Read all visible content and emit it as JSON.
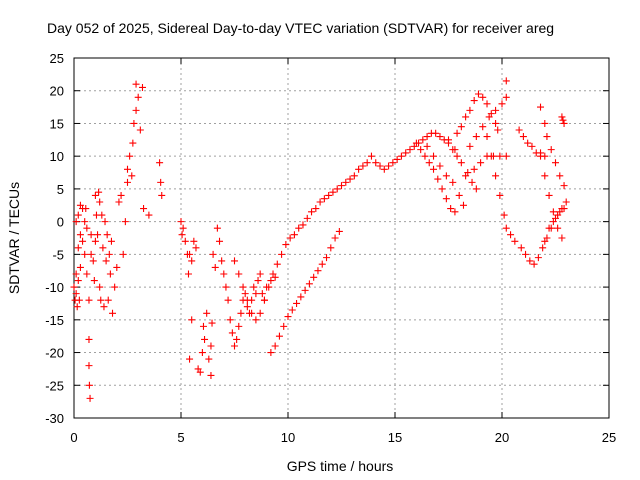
{
  "chart_data": {
    "type": "scatter",
    "title": "Day 052 of 2025, Sidereal Day-to-day VTEC variation (SDTVAR) for receiver areg",
    "xlabel": "GPS time / hours",
    "ylabel": "SDTVAR / TECUs",
    "xlim": [
      0,
      25
    ],
    "ylim": [
      -30,
      25
    ],
    "xticks": [
      0,
      5,
      10,
      15,
      20,
      25
    ],
    "yticks": [
      -30,
      -25,
      -20,
      -15,
      -10,
      -5,
      0,
      5,
      10,
      15,
      20,
      25
    ],
    "grid": true,
    "marker": "+",
    "color": "#ff0000",
    "series": [
      {
        "points": [
          [
            0.0,
            -10
          ],
          [
            0.05,
            -12
          ],
          [
            0.1,
            -8
          ],
          [
            0.1,
            -11
          ],
          [
            0.15,
            -13
          ],
          [
            0.2,
            -9
          ],
          [
            0.2,
            -4
          ],
          [
            0.25,
            -12
          ],
          [
            0.3,
            -7
          ],
          [
            0.3,
            -2
          ],
          [
            0.1,
            0
          ],
          [
            0.2,
            1
          ],
          [
            0.3,
            2.5
          ],
          [
            0.4,
            2
          ],
          [
            0.4,
            -3
          ],
          [
            0.5,
            -5
          ],
          [
            0.5,
            0
          ],
          [
            0.55,
            2
          ],
          [
            0.6,
            -1
          ],
          [
            0.6,
            -8
          ],
          [
            0.7,
            -12
          ],
          [
            0.7,
            -18
          ],
          [
            0.7,
            -22
          ],
          [
            0.72,
            -25
          ],
          [
            0.75,
            -27
          ],
          [
            0.8,
            -5
          ],
          [
            0.8,
            -2
          ],
          [
            0.9,
            -6
          ],
          [
            0.95,
            -9
          ],
          [
            1.0,
            -3
          ],
          [
            1.0,
            4
          ],
          [
            1.05,
            1
          ],
          [
            1.1,
            -2
          ],
          [
            1.15,
            4.5
          ],
          [
            1.2,
            3
          ],
          [
            1.2,
            -10
          ],
          [
            1.25,
            -12
          ],
          [
            1.3,
            1
          ],
          [
            1.35,
            -4
          ],
          [
            1.4,
            -13
          ],
          [
            1.45,
            0
          ],
          [
            1.5,
            -6
          ],
          [
            1.55,
            -2
          ],
          [
            1.6,
            -12
          ],
          [
            1.65,
            -5
          ],
          [
            1.7,
            -8
          ],
          [
            1.75,
            -3
          ],
          [
            1.8,
            -14
          ],
          [
            1.9,
            -10
          ],
          [
            2.0,
            -7
          ],
          [
            2.1,
            3
          ],
          [
            2.2,
            4
          ],
          [
            2.3,
            -5
          ],
          [
            2.4,
            0
          ],
          [
            2.5,
            6
          ],
          [
            2.5,
            8
          ],
          [
            2.6,
            10
          ],
          [
            2.7,
            7
          ],
          [
            2.75,
            12
          ],
          [
            2.8,
            15
          ],
          [
            2.9,
            17
          ],
          [
            2.9,
            21
          ],
          [
            3.0,
            19
          ],
          [
            3.1,
            14
          ],
          [
            3.2,
            20.5
          ],
          [
            3.25,
            2
          ],
          [
            3.5,
            1
          ],
          [
            4.0,
            9
          ],
          [
            4.05,
            6
          ],
          [
            4.1,
            4
          ]
        ]
      },
      {
        "points": [
          [
            5.0,
            0
          ],
          [
            5.05,
            -2
          ],
          [
            5.1,
            -1
          ],
          [
            5.2,
            -3
          ],
          [
            5.3,
            -5
          ],
          [
            5.35,
            -8
          ],
          [
            5.4,
            -5
          ],
          [
            5.5,
            -6
          ],
          [
            5.4,
            -21
          ],
          [
            5.5,
            -15
          ],
          [
            5.6,
            -3
          ],
          [
            5.7,
            -4
          ],
          [
            5.8,
            -22.5
          ],
          [
            5.9,
            -23
          ],
          [
            6.0,
            -20
          ],
          [
            6.05,
            -16
          ],
          [
            6.1,
            -18
          ],
          [
            6.2,
            -14
          ],
          [
            6.3,
            -21
          ],
          [
            6.4,
            -23.5
          ],
          [
            6.4,
            -19
          ],
          [
            6.45,
            -15.5
          ],
          [
            6.5,
            -5
          ],
          [
            6.6,
            -7
          ],
          [
            6.7,
            -1
          ],
          [
            6.8,
            -3
          ],
          [
            6.9,
            -6
          ],
          [
            7.0,
            -8
          ],
          [
            7.1,
            -10
          ],
          [
            7.2,
            -12
          ],
          [
            7.3,
            -15
          ],
          [
            7.4,
            -17
          ],
          [
            7.5,
            -19
          ],
          [
            7.6,
            -18
          ],
          [
            7.7,
            -16
          ],
          [
            7.8,
            -14
          ],
          [
            7.9,
            -12
          ],
          [
            8.0,
            -11
          ],
          [
            8.1,
            -13
          ],
          [
            8.2,
            -14
          ],
          [
            8.3,
            -12
          ],
          [
            8.4,
            -10
          ],
          [
            8.5,
            -11
          ],
          [
            8.6,
            -9
          ],
          [
            8.7,
            -8
          ],
          [
            8.8,
            -11
          ],
          [
            8.9,
            -12
          ],
          [
            9.0,
            -10
          ],
          [
            9.2,
            -9
          ],
          [
            9.4,
            -8.5
          ]
        ]
      },
      {
        "points": [
          [
            7.5,
            -6
          ],
          [
            7.7,
            -8
          ],
          [
            7.9,
            -10
          ],
          [
            8.1,
            -12
          ],
          [
            8.3,
            -14
          ],
          [
            8.5,
            -15
          ],
          [
            8.7,
            -14
          ],
          [
            8.9,
            -12
          ],
          [
            9.1,
            -10
          ],
          [
            9.3,
            -8
          ],
          [
            9.5,
            -6.5
          ],
          [
            9.7,
            -5
          ],
          [
            9.9,
            -3.5
          ],
          [
            10.1,
            -2.5
          ],
          [
            10.3,
            -2
          ],
          [
            10.5,
            -1
          ],
          [
            10.7,
            -0.5
          ],
          [
            10.9,
            0.5
          ],
          [
            11.1,
            1.5
          ],
          [
            11.3,
            2
          ],
          [
            11.5,
            3
          ],
          [
            11.7,
            3.5
          ],
          [
            11.9,
            4
          ],
          [
            12.1,
            4.5
          ],
          [
            12.3,
            5
          ],
          [
            12.5,
            5.5
          ],
          [
            12.7,
            6
          ],
          [
            12.9,
            6.5
          ],
          [
            13.1,
            7
          ],
          [
            13.3,
            8
          ],
          [
            13.5,
            8.5
          ],
          [
            13.7,
            9
          ],
          [
            13.9,
            10
          ],
          [
            14.1,
            9
          ],
          [
            14.3,
            8.5
          ],
          [
            14.5,
            8
          ],
          [
            14.7,
            8.5
          ],
          [
            14.9,
            9
          ],
          [
            15.1,
            9.5
          ],
          [
            15.3,
            10
          ],
          [
            15.5,
            10.5
          ],
          [
            15.7,
            11
          ],
          [
            15.9,
            11.5
          ],
          [
            16.1,
            12
          ],
          [
            16.3,
            12.5
          ],
          [
            16.5,
            13
          ],
          [
            16.7,
            13.5
          ],
          [
            16.9,
            13.5
          ],
          [
            17.1,
            13
          ],
          [
            17.3,
            12.5
          ],
          [
            17.5,
            12
          ],
          [
            17.7,
            11
          ],
          [
            17.9,
            10
          ]
        ]
      },
      {
        "points": [
          [
            9.2,
            -20
          ],
          [
            9.4,
            -19
          ],
          [
            9.6,
            -17.5
          ],
          [
            9.8,
            -16
          ],
          [
            10.0,
            -14.5
          ],
          [
            10.2,
            -13.5
          ],
          [
            10.4,
            -12.5
          ],
          [
            10.6,
            -11.5
          ],
          [
            10.8,
            -10.5
          ],
          [
            11.0,
            -9.5
          ],
          [
            11.2,
            -8.5
          ],
          [
            11.4,
            -7.5
          ],
          [
            11.6,
            -6.5
          ],
          [
            11.8,
            -5.5
          ],
          [
            12.0,
            -4
          ],
          [
            12.2,
            -2.5
          ],
          [
            12.4,
            -1.5
          ]
        ]
      },
      {
        "points": [
          [
            16.0,
            12
          ],
          [
            16.2,
            11
          ],
          [
            16.4,
            10
          ],
          [
            16.6,
            9
          ],
          [
            16.8,
            8
          ],
          [
            17.0,
            6.5
          ],
          [
            17.2,
            5
          ],
          [
            17.4,
            3.5
          ],
          [
            17.6,
            2
          ],
          [
            17.8,
            1.5
          ],
          [
            16.5,
            11.5
          ],
          [
            16.8,
            10
          ],
          [
            17.1,
            8.5
          ],
          [
            17.4,
            7
          ],
          [
            17.7,
            6
          ],
          [
            18.0,
            4
          ],
          [
            18.2,
            2.5
          ],
          [
            17.5,
            12.5
          ],
          [
            17.8,
            11
          ],
          [
            18.1,
            9
          ],
          [
            18.4,
            7.5
          ],
          [
            18.6,
            6
          ],
          [
            18.8,
            5
          ]
        ]
      },
      {
        "points": [
          [
            17.9,
            13.5
          ],
          [
            18.1,
            14.5
          ],
          [
            18.3,
            16
          ],
          [
            18.5,
            17
          ],
          [
            18.7,
            18.5
          ],
          [
            18.9,
            19.5
          ],
          [
            19.1,
            19
          ],
          [
            19.3,
            18
          ],
          [
            19.5,
            16.5
          ],
          [
            19.7,
            15
          ],
          [
            19.8,
            14
          ],
          [
            18.5,
            11.5
          ],
          [
            18.8,
            13
          ],
          [
            19.1,
            14.5
          ],
          [
            19.4,
            16
          ],
          [
            19.7,
            17
          ],
          [
            20.0,
            18
          ],
          [
            20.2,
            19
          ],
          [
            18.3,
            7
          ],
          [
            18.7,
            8
          ],
          [
            19.0,
            9
          ],
          [
            19.3,
            10
          ],
          [
            19.6,
            10
          ],
          [
            19.9,
            10
          ],
          [
            20.2,
            10
          ],
          [
            19.3,
            13
          ],
          [
            19.5,
            10
          ],
          [
            19.7,
            7
          ],
          [
            19.9,
            4
          ],
          [
            20.1,
            1
          ],
          [
            20.2,
            -1
          ]
        ]
      },
      {
        "points": [
          [
            20.2,
            21.5
          ],
          [
            20.4,
            -2
          ],
          [
            20.6,
            -3
          ],
          [
            20.8,
            14
          ],
          [
            21.0,
            13
          ],
          [
            21.2,
            12
          ],
          [
            21.4,
            11.5
          ],
          [
            21.6,
            10.5
          ],
          [
            21.8,
            10.5
          ],
          [
            22.0,
            10
          ],
          [
            20.9,
            -4
          ],
          [
            21.1,
            -5
          ],
          [
            21.3,
            -6
          ],
          [
            21.5,
            -6.5
          ],
          [
            21.7,
            -5.5
          ],
          [
            21.9,
            -4
          ],
          [
            22.1,
            -2.5
          ],
          [
            22.3,
            -1
          ],
          [
            22.5,
            0.5
          ],
          [
            22.7,
            1.5
          ],
          [
            22.9,
            2
          ],
          [
            21.8,
            10
          ],
          [
            22.0,
            7
          ],
          [
            22.2,
            4
          ],
          [
            22.4,
            1.5
          ],
          [
            22.6,
            -1
          ],
          [
            22.8,
            -2.5
          ],
          [
            21.8,
            17.5
          ],
          [
            22.0,
            15
          ],
          [
            22.1,
            13
          ],
          [
            22.3,
            11
          ],
          [
            22.5,
            9
          ],
          [
            22.7,
            7
          ],
          [
            22.9,
            5.5
          ],
          [
            22.0,
            -3
          ],
          [
            22.2,
            -1
          ],
          [
            22.4,
            0
          ],
          [
            22.6,
            1
          ],
          [
            22.8,
            2
          ],
          [
            23.0,
            3
          ],
          [
            22.8,
            16
          ],
          [
            22.85,
            15.5
          ],
          [
            22.9,
            15
          ]
        ]
      }
    ]
  }
}
